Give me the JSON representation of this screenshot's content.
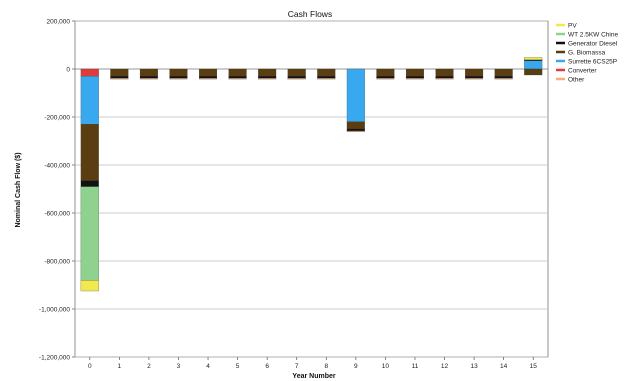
{
  "chart_data": {
    "type": "bar",
    "stacked": true,
    "title": "Cash Flows",
    "xlabel": "Year Number",
    "ylabel": "Nominal Cash Flow ($)",
    "ylim": [
      -1200000,
      200000
    ],
    "yticks": [
      200000,
      0,
      -200000,
      -400000,
      -600000,
      -800000,
      -1000000,
      -1200000
    ],
    "ytick_labels": [
      "200,000",
      "0",
      "-200,000",
      "-400,000",
      "-600,000",
      "-800,000",
      "-1,000,000",
      "-1,200,000"
    ],
    "categories": [
      "0",
      "1",
      "2",
      "3",
      "4",
      "5",
      "6",
      "7",
      "8",
      "9",
      "10",
      "11",
      "12",
      "13",
      "14",
      "15"
    ],
    "grid": true,
    "legend_position": "right",
    "colors": {
      "PV": "#f2e94e",
      "WT 2.5KW Chine": "#8fd18f",
      "Generator Diesel": "#111111",
      "G. Biomassa": "#5a3e12",
      "Surrette 6CS25P": "#39a9ef",
      "Converter": "#e03a3a",
      "Other": "#f4b07b"
    },
    "series": [
      {
        "name": "PV",
        "values": [
          -45000,
          0,
          0,
          0,
          0,
          0,
          0,
          0,
          0,
          0,
          0,
          0,
          0,
          0,
          0,
          10000
        ]
      },
      {
        "name": "WT 2.5KW Chine",
        "values": [
          -390000,
          0,
          0,
          0,
          0,
          0,
          0,
          0,
          0,
          0,
          0,
          0,
          0,
          0,
          0,
          0
        ]
      },
      {
        "name": "Generator Diesel",
        "values": [
          -25000,
          -8000,
          -8000,
          -8000,
          -8000,
          -8000,
          -8000,
          -8000,
          -8000,
          -8000,
          -8000,
          -8000,
          -8000,
          -8000,
          -8000,
          3000
        ]
      },
      {
        "name": "G. Biomassa",
        "values": [
          -235000,
          -30000,
          -30000,
          -30000,
          -30000,
          -30000,
          -30000,
          -30000,
          -30000,
          -30000,
          -30000,
          -30000,
          -30000,
          -30000,
          -30000,
          -25000
        ]
      },
      {
        "name": "Surrette 6CS25P",
        "values": [
          -200000,
          0,
          0,
          0,
          0,
          0,
          0,
          0,
          0,
          -220000,
          0,
          0,
          0,
          0,
          0,
          35000
        ]
      },
      {
        "name": "Converter",
        "values": [
          -30000,
          0,
          0,
          0,
          0,
          0,
          0,
          0,
          0,
          0,
          0,
          0,
          0,
          0,
          0,
          0
        ]
      },
      {
        "name": "Other",
        "values": [
          0,
          -4000,
          -4000,
          -4000,
          -4000,
          -4000,
          -4000,
          -4000,
          -4000,
          -4000,
          -4000,
          -4000,
          -4000,
          -4000,
          -4000,
          0
        ]
      }
    ]
  }
}
